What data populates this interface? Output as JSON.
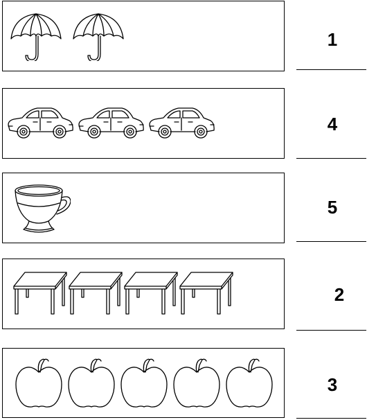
{
  "worksheet": {
    "rows": [
      {
        "object": "umbrella",
        "count": 2,
        "number": "1"
      },
      {
        "object": "car",
        "count": 3,
        "number": "4"
      },
      {
        "object": "cup",
        "count": 1,
        "number": "5"
      },
      {
        "object": "table",
        "count": 4,
        "number": "2"
      },
      {
        "object": "apple",
        "count": 5,
        "number": "3"
      }
    ]
  }
}
